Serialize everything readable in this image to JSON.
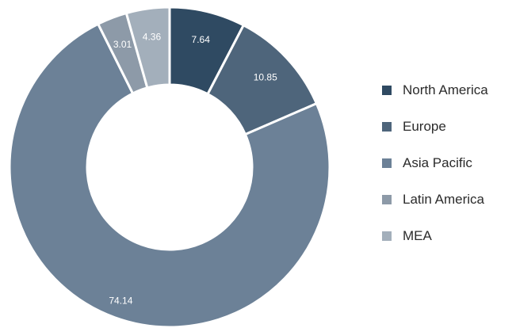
{
  "chart_data": {
    "type": "pie",
    "donut": true,
    "categories": [
      "North America",
      "Europe",
      "Asia Pacific",
      "Latin America",
      "MEA"
    ],
    "values": [
      7.64,
      10.85,
      74.14,
      3.01,
      4.36
    ],
    "value_labels": [
      "7.64",
      "10.85",
      "74.14",
      "3.01",
      "4.36"
    ],
    "colors": [
      "#2f4a62",
      "#4e657b",
      "#6c8197",
      "#8d9aa8",
      "#a3afbb"
    ],
    "legend_position": "right"
  }
}
